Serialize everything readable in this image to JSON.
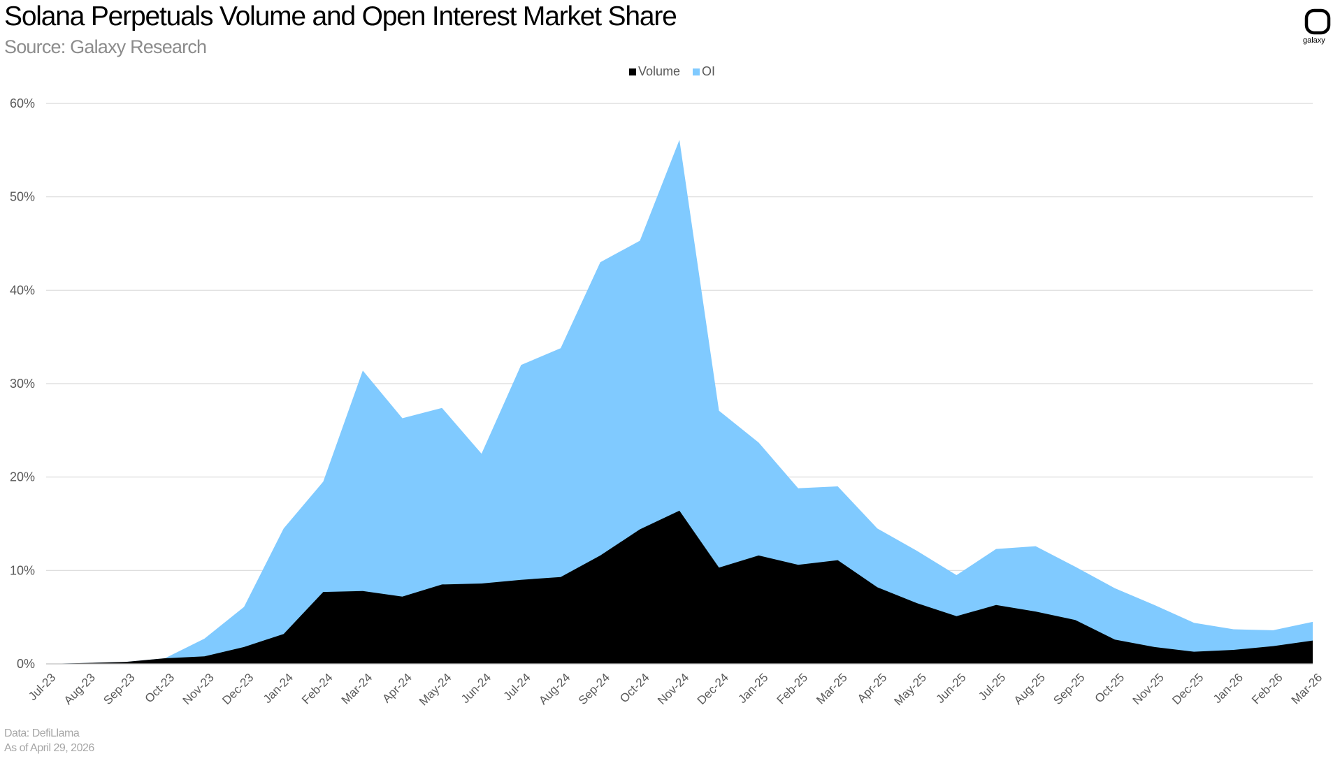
{
  "header": {
    "title": "Solana Perpetuals Volume and Open Interest Market Share",
    "subtitle": "Source: Galaxy Research"
  },
  "logo": {
    "icon": "galaxy-logo-icon",
    "text": "galaxy"
  },
  "footer": {
    "data_source": "Data: DefiLlama",
    "as_of": "As of April 29, 2026"
  },
  "colors": {
    "volume": "#000000",
    "oi": "#80caff",
    "grid": "#d9d9d9",
    "axis_text": "#595959"
  },
  "chart_data": {
    "type": "area",
    "stacked": false,
    "categories": [
      "Jul-23",
      "Aug-23",
      "Sep-23",
      "Oct-23",
      "Nov-23",
      "Dec-23",
      "Jan-24",
      "Feb-24",
      "Mar-24",
      "Apr-24",
      "May-24",
      "Jun-24",
      "Jul-24",
      "Aug-24",
      "Sep-24",
      "Oct-24",
      "Nov-24",
      "Dec-24",
      "Jan-25",
      "Feb-25",
      "Mar-25",
      "Apr-25",
      "May-25",
      "Jun-25",
      "Jul-25",
      "Aug-25",
      "Sep-25",
      "Oct-25",
      "Nov-25",
      "Dec-25",
      "Jan-26",
      "Feb-26",
      "Mar-26"
    ],
    "series": [
      {
        "name": "OI",
        "color": "#80caff",
        "values": [
          0,
          0.1,
          0.2,
          0.6,
          2.7,
          6.1,
          14.5,
          19.5,
          31.4,
          26.3,
          27.4,
          22.5,
          32.0,
          33.8,
          43.0,
          45.3,
          56.1,
          27.1,
          23.7,
          18.8,
          19.0,
          14.5,
          12.1,
          9.5,
          12.3,
          12.6,
          10.4,
          8.1,
          6.3,
          4.4,
          3.7,
          3.6,
          4.5
        ]
      },
      {
        "name": "Volume",
        "color": "#000000",
        "values": [
          0,
          0.1,
          0.2,
          0.6,
          0.8,
          1.8,
          3.2,
          7.7,
          7.8,
          7.2,
          8.5,
          8.6,
          9.0,
          9.3,
          11.6,
          14.4,
          16.4,
          10.3,
          11.6,
          10.6,
          11.1,
          8.2,
          6.5,
          5.1,
          6.3,
          5.6,
          4.7,
          2.6,
          1.8,
          1.3,
          1.5,
          1.9,
          2.5
        ]
      }
    ],
    "legend": {
      "position": "top-center",
      "entries": [
        "Volume",
        "OI"
      ]
    },
    "ylim": [
      0,
      60
    ],
    "yticks": [
      "0%",
      "10%",
      "20%",
      "30%",
      "40%",
      "50%",
      "60%"
    ],
    "ytick_values": [
      0,
      10,
      20,
      30,
      40,
      50,
      60
    ],
    "grid": true,
    "xlabel": "",
    "ylabel": ""
  }
}
